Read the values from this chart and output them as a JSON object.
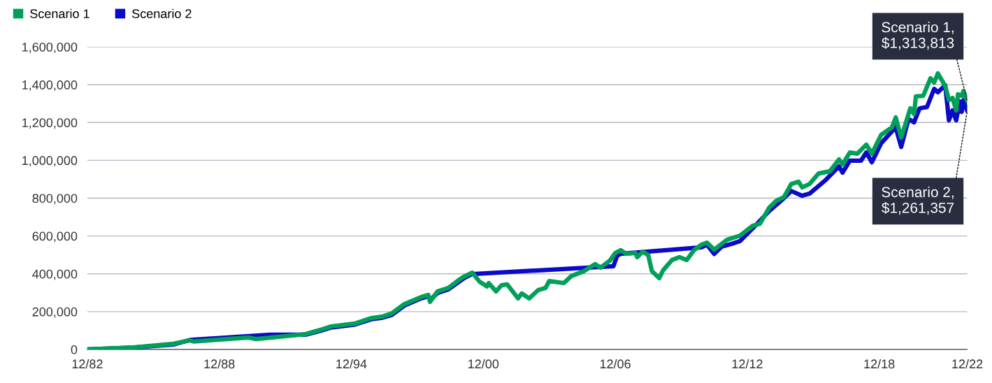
{
  "chart_data": {
    "type": "line",
    "xlim": [
      "1982-12",
      "2022-12"
    ],
    "xticks": [
      {
        "value": "1982-12",
        "label": "12/82"
      },
      {
        "value": "1988-12",
        "label": "12/88"
      },
      {
        "value": "1994-12",
        "label": "12/94"
      },
      {
        "value": "2000-12",
        "label": "12/00"
      },
      {
        "value": "2006-12",
        "label": "12/06"
      },
      {
        "value": "2012-12",
        "label": "12/12"
      },
      {
        "value": "2018-12",
        "label": "12/18"
      },
      {
        "value": "2022-12",
        "label": "12/22"
      }
    ],
    "ylim": [
      0,
      1600000
    ],
    "yticks": [
      {
        "value": 0,
        "label": "0"
      },
      {
        "value": 200000,
        "label": "200,000"
      },
      {
        "value": 400000,
        "label": "400,000"
      },
      {
        "value": 600000,
        "label": "600,000"
      },
      {
        "value": 800000,
        "label": "800,000"
      },
      {
        "value": 1000000,
        "label": "1,000,000"
      },
      {
        "value": 1200000,
        "label": "1,200,000"
      },
      {
        "value": 1400000,
        "label": "1,400,000"
      },
      {
        "value": 1600000,
        "label": "1,600,000"
      }
    ],
    "grid": "y",
    "legend": "top left",
    "marker": "none",
    "line_style": "solid",
    "series": [
      {
        "name": "Scenario 2",
        "color": "#0a0ac8",
        "x": [
          "1982-12",
          "1985-01",
          "1986-11",
          "1987-08",
          "1991-04",
          "1992-11",
          "1993-07",
          "1994-01",
          "1995-02",
          "1995-11",
          "1996-05",
          "1996-10",
          "1997-05",
          "1998-02",
          "1998-06",
          "1998-07",
          "1998-11",
          "1999-05",
          "1999-11",
          "2000-02",
          "2000-06",
          "2006-11",
          "2007-01",
          "2007-03",
          "2010-11",
          "2011-02",
          "2011-06",
          "2011-10",
          "2012-04",
          "2012-08",
          "2013-03",
          "2013-12",
          "2014-08",
          "2014-12",
          "2015-06",
          "2015-10",
          "2016-07",
          "2017-02",
          "2017-04",
          "2017-08",
          "2018-02",
          "2018-05",
          "2018-08",
          "2019-01",
          "2019-09",
          "2019-12",
          "2020-04",
          "2020-07",
          "2020-10",
          "2021-02",
          "2021-06",
          "2021-08",
          "2021-12",
          "2022-02",
          "2022-04",
          "2022-06",
          "2022-08",
          "2022-09",
          "2022-10",
          "2022-12"
        ],
        "values": [
          0,
          10000,
          26000,
          50000,
          78000,
          78000,
          98000,
          116000,
          132000,
          160000,
          168000,
          182000,
          232000,
          270000,
          282000,
          262000,
          298000,
          318000,
          360000,
          380000,
          399000,
          440000,
          495000,
          506000,
          540000,
          554000,
          505000,
          543000,
          560000,
          573000,
          640000,
          732000,
          800000,
          838000,
          813000,
          824000,
          898000,
          968000,
          935000,
          998000,
          998000,
          1042000,
          990000,
          1090000,
          1175000,
          1071000,
          1219000,
          1201000,
          1275000,
          1282000,
          1378000,
          1360000,
          1397000,
          1212000,
          1264000,
          1212000,
          1312000,
          1256000,
          1319000,
          1261357
        ]
      },
      {
        "name": "Scenario 1",
        "color": "#00a05a",
        "x": [
          "1982-12",
          "1985-01",
          "1986-11",
          "1987-08",
          "1987-10",
          "1990-04",
          "1990-08",
          "1992-11",
          "1993-07",
          "1994-01",
          "1995-02",
          "1995-11",
          "1996-05",
          "1996-10",
          "1997-05",
          "1998-02",
          "1998-06",
          "1998-07",
          "1998-11",
          "1999-05",
          "1999-11",
          "2000-02",
          "2000-06",
          "2000-10",
          "2001-02",
          "2001-03",
          "2001-07",
          "2001-10",
          "2002-01",
          "2002-07",
          "2002-09",
          "2003-01",
          "2003-06",
          "2003-10",
          "2003-12",
          "2004-08",
          "2004-12",
          "2005-07",
          "2006-01",
          "2006-04",
          "2006-09",
          "2006-12",
          "2007-03",
          "2007-06",
          "2007-11",
          "2007-12",
          "2008-03",
          "2008-06",
          "2008-08",
          "2008-12",
          "2009-02",
          "2009-07",
          "2009-11",
          "2010-03",
          "2010-07",
          "2010-11",
          "2011-02",
          "2011-06",
          "2012-01",
          "2012-08",
          "2013-03",
          "2013-07",
          "2013-12",
          "2014-04",
          "2014-08",
          "2014-12",
          "2015-04",
          "2015-06",
          "2015-10",
          "2016-03",
          "2016-09",
          "2017-02",
          "2017-04",
          "2017-08",
          "2017-12",
          "2018-05",
          "2018-08",
          "2019-01",
          "2019-07",
          "2019-09",
          "2019-12",
          "2020-05",
          "2020-07",
          "2020-08",
          "2020-12",
          "2021-04",
          "2021-06",
          "2021-08",
          "2021-12",
          "2022-02",
          "2022-04",
          "2022-06",
          "2022-07",
          "2022-09",
          "2022-10",
          "2022-12"
        ],
        "values": [
          0,
          11000,
          30000,
          48000,
          42000,
          63000,
          55000,
          81000,
          103000,
          122000,
          137000,
          166000,
          174000,
          190000,
          240000,
          277000,
          288000,
          251000,
          307000,
          325000,
          370000,
          388000,
          406000,
          358000,
          333000,
          351000,
          307000,
          340000,
          344000,
          270000,
          296000,
          270000,
          314000,
          325000,
          362000,
          351000,
          388000,
          414000,
          451000,
          432000,
          469000,
          510000,
          525000,
          506000,
          510000,
          488000,
          517000,
          499000,
          414000,
          377000,
          418000,
          473000,
          488000,
          473000,
          525000,
          554000,
          565000,
          528000,
          580000,
          602000,
          654000,
          665000,
          750000,
          787000,
          805000,
          875000,
          887000,
          857000,
          875000,
          931000,
          942000,
          1005000,
          979000,
          1042000,
          1035000,
          1083000,
          1035000,
          1134000,
          1175000,
          1227000,
          1120000,
          1275000,
          1245000,
          1338000,
          1341000,
          1434000,
          1412000,
          1460000,
          1393000,
          1319000,
          1330000,
          1264000,
          1349000,
          1341000,
          1367000,
          1313813
        ]
      }
    ],
    "annotations": [
      {
        "text": "Scenario 1,\n$1,313,813",
        "x": "2022-12",
        "y": 1313813
      },
      {
        "text": "Scenario 2,\n$1,261,357",
        "x": "2022-12",
        "y": 1261357
      }
    ]
  }
}
